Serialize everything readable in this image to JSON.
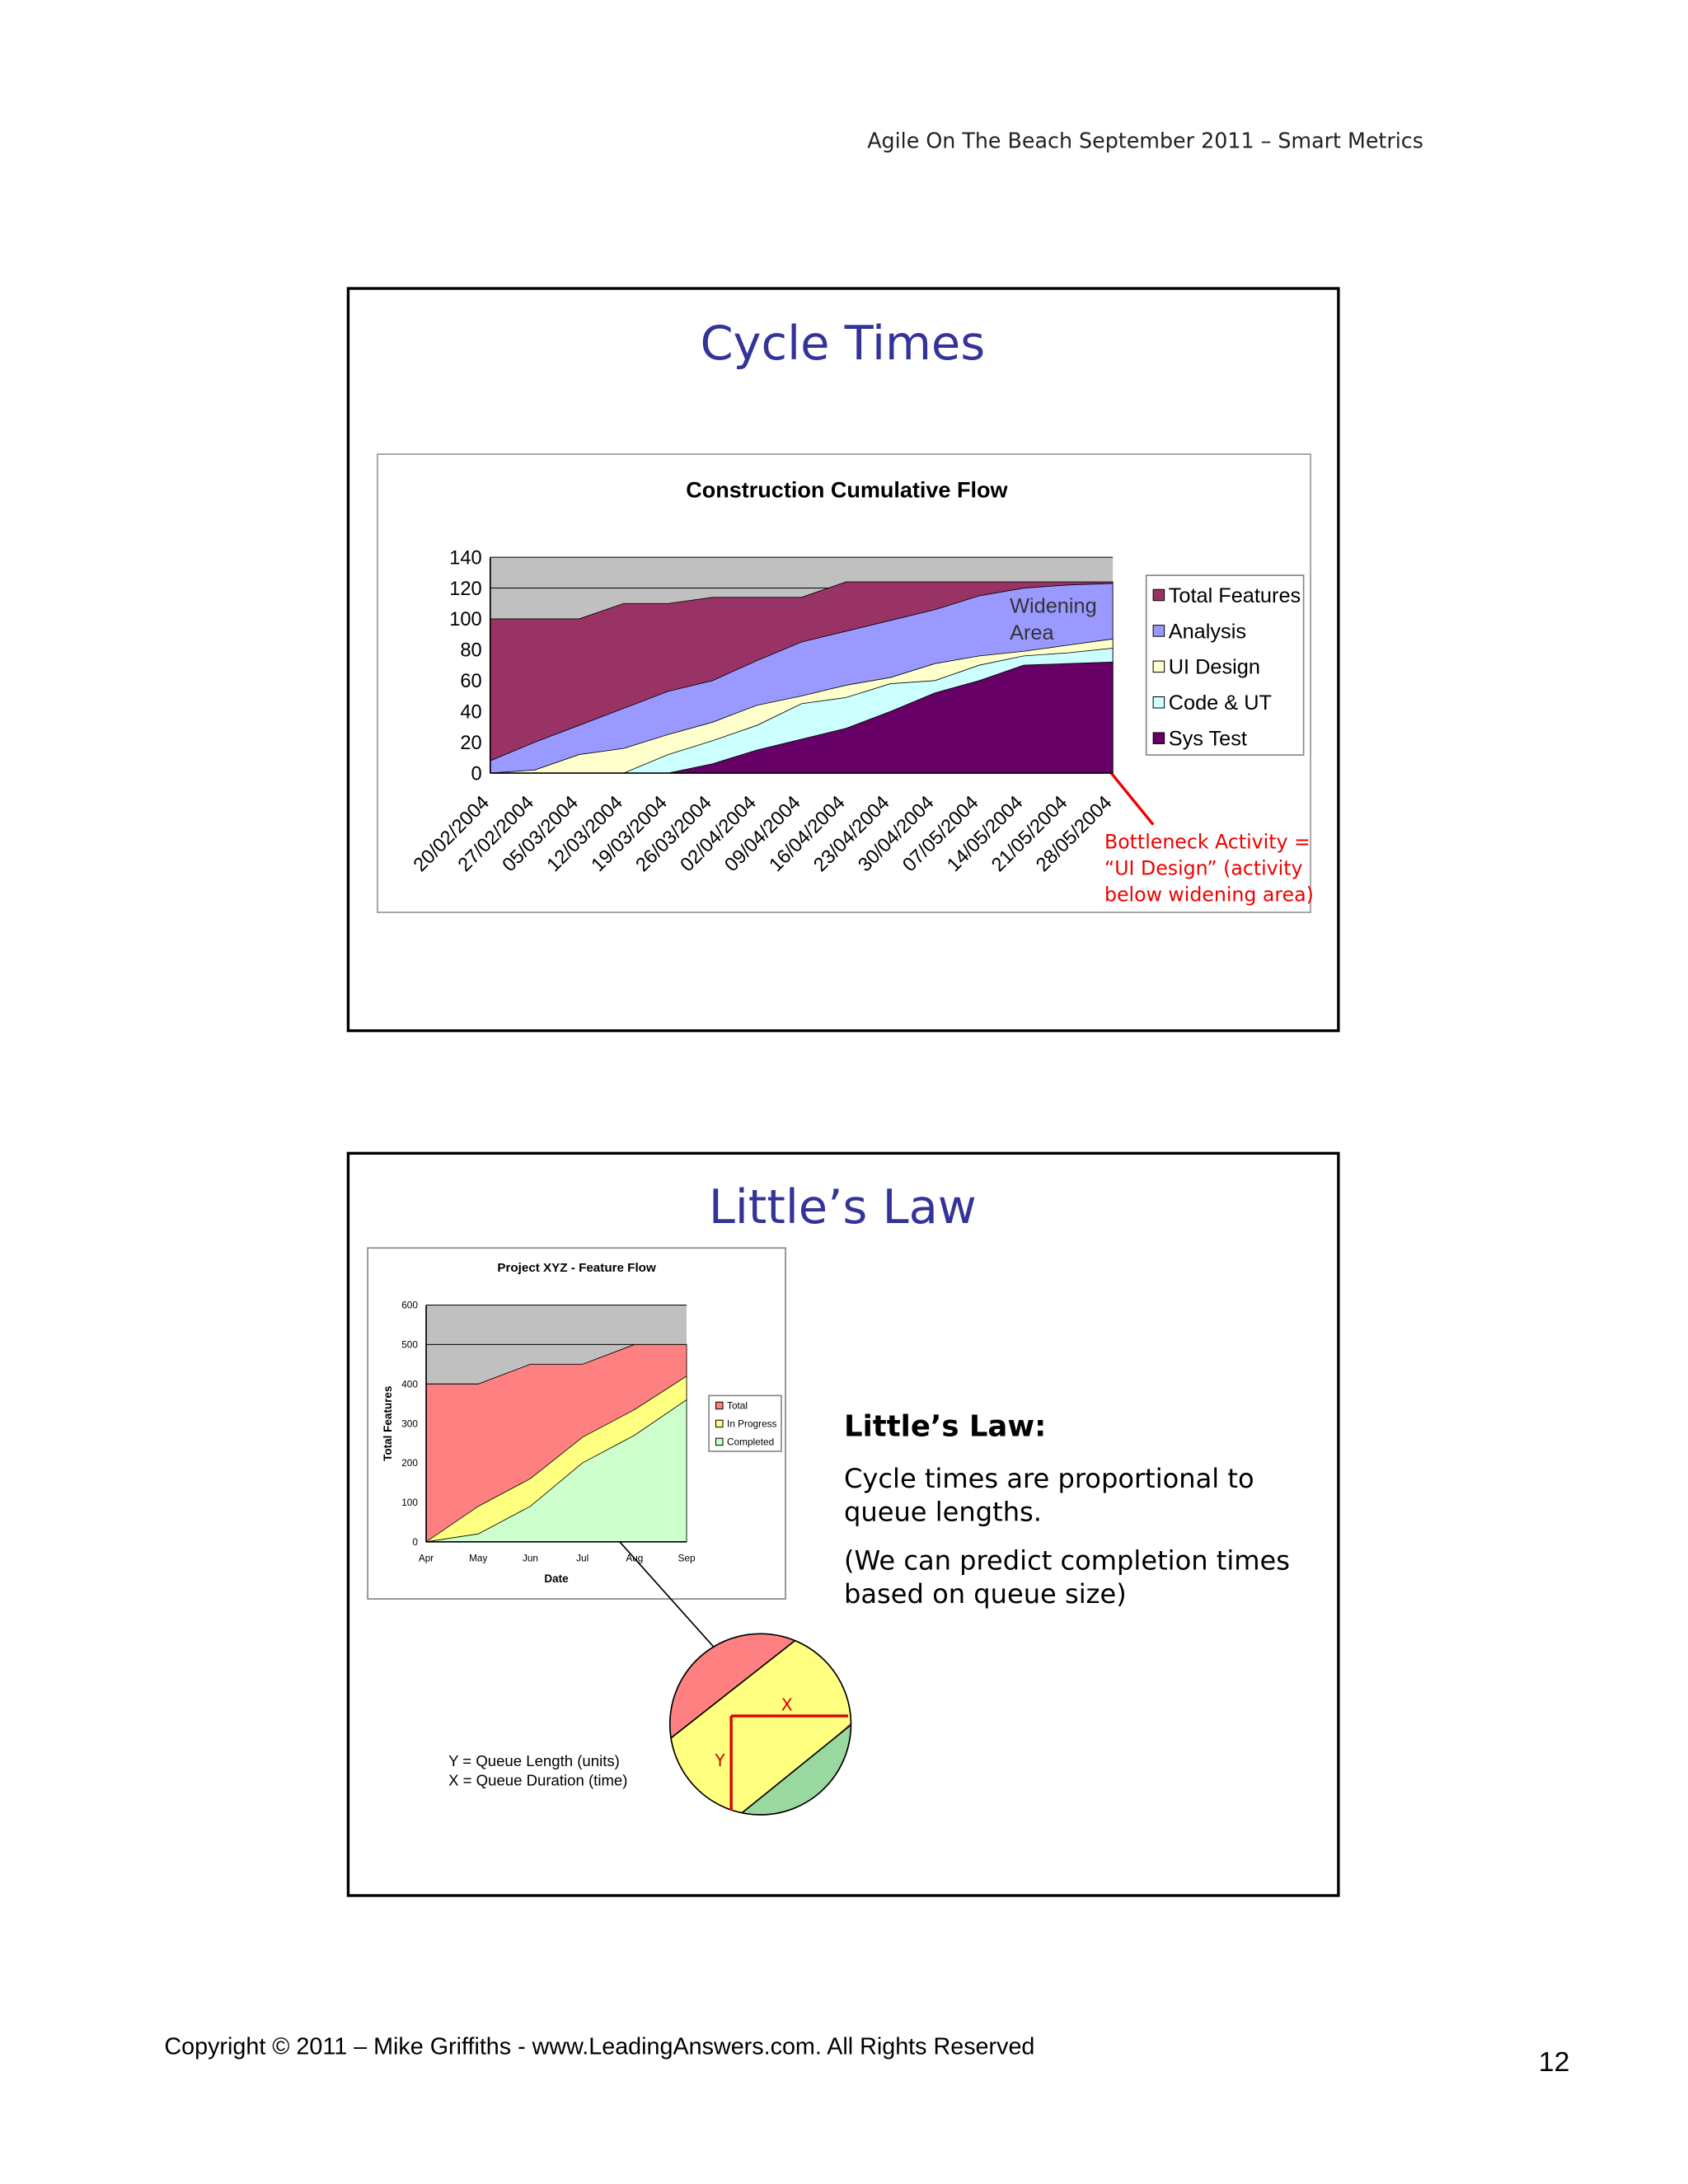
{
  "header": "Agile On The Beach September 2011 – Smart Metrics",
  "slides": [
    {
      "title": "Cycle Times"
    },
    {
      "title": "Little’s Law",
      "heading": "Little’s Law:",
      "text1": [
        "Cycle times are proportional to",
        "queue lengths."
      ],
      "text2": [
        "(We can predict completion times",
        "based on queue size)"
      ],
      "zoom": {
        "x_label": "X",
        "y_label": "Y",
        "key": [
          "Y = Queue Length (units)",
          "X = Queue Duration (time)"
        ]
      }
    }
  ],
  "chart_data": [
    {
      "type": "area",
      "title": "Construction Cumulative Flow",
      "categories": [
        "20/02/2004",
        "27/02/2004",
        "05/03/2004",
        "12/03/2004",
        "19/03/2004",
        "26/03/2004",
        "02/04/2004",
        "09/04/2004",
        "16/04/2004",
        "23/04/2004",
        "30/04/2004",
        "07/05/2004",
        "14/05/2004",
        "21/05/2004",
        "28/05/2004"
      ],
      "series": [
        {
          "name": "Total Features",
          "color": "#993366",
          "values": [
            100,
            100,
            100,
            110,
            110,
            114,
            114,
            114,
            124,
            124,
            124,
            124,
            124,
            124,
            124
          ]
        },
        {
          "name": "Analysis",
          "color": "#9999ff",
          "values": [
            8,
            20,
            31,
            42,
            53,
            60,
            73,
            85,
            92,
            99,
            106,
            115,
            120,
            122,
            123
          ]
        },
        {
          "name": "UI Design",
          "color": "#ffffcc",
          "values": [
            0,
            2,
            12,
            16,
            25,
            33,
            44,
            50,
            57,
            62,
            71,
            76,
            79,
            83,
            87
          ]
        },
        {
          "name": "Code & UT",
          "color": "#ccffff",
          "values": [
            0,
            0,
            0,
            0,
            12,
            21,
            31,
            45,
            49,
            58,
            60,
            70,
            76,
            78,
            81
          ]
        },
        {
          "name": "Sys Test",
          "color": "#660066",
          "values": [
            0,
            0,
            0,
            0,
            0,
            6,
            15,
            22,
            29,
            40,
            52,
            60,
            70,
            71,
            72
          ]
        }
      ],
      "ylim": [
        0,
        140
      ],
      "yticks": [
        0,
        20,
        40,
        60,
        80,
        100,
        120,
        140
      ],
      "annotations": [
        [
          "Widening",
          "Area"
        ],
        [
          "Bottleneck Activity =",
          "“UI Design” (activity",
          "below widening area)"
        ]
      ]
    },
    {
      "type": "area",
      "title": "Project XYZ - Feature Flow",
      "x_label": "Date",
      "y_label": "Total Features",
      "categories": [
        "Apr",
        "May",
        "Jun",
        "Jul",
        "Aug",
        "Sep"
      ],
      "series": [
        {
          "name": "Total",
          "color": "#ff8080",
          "values": [
            400,
            400,
            450,
            450,
            500,
            500
          ]
        },
        {
          "name": "In Progress",
          "color": "#ffff80",
          "values": [
            0,
            90,
            160,
            265,
            335,
            420
          ]
        },
        {
          "name": "Completed",
          "color": "#ccffcc",
          "values": [
            0,
            20,
            90,
            200,
            270,
            360
          ]
        }
      ],
      "ylim": [
        0,
        600
      ],
      "yticks": [
        0,
        100,
        200,
        300,
        400,
        500,
        600
      ]
    }
  ],
  "footer": {
    "copyright": "Copyright © 2011 – Mike Griffiths - www.LeadingAnswers.com. All Rights Reserved",
    "page": "12"
  }
}
